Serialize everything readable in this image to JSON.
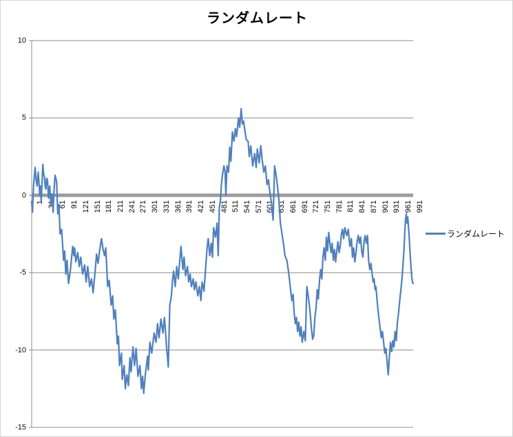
{
  "chart": {
    "title": "ランダムレート",
    "legend": {
      "label": "ランダムレート"
    },
    "colors": {
      "series": "#4F81BD",
      "gridline": "#8c8c8c",
      "zero_line": "#9c9c9c",
      "axis": "#8c8c8c",
      "chart_border": "#d4d4d4",
      "text": "#0d0d0d"
    }
  },
  "chart_data": {
    "type": "line",
    "title": "ランダムレート",
    "xlabel": "",
    "ylabel": "",
    "xlim": [
      1,
      995
    ],
    "ylim": [
      -15,
      10
    ],
    "grid": "horizontal",
    "legend_position": "right-middle",
    "y_ticks": [
      10,
      5,
      0,
      -5,
      -10,
      -15
    ],
    "y_tick_labels": [
      "10",
      "5",
      "0",
      "-5",
      "-10",
      "-15"
    ],
    "x_tick_labels": [
      "1",
      "31",
      "61",
      "91",
      "121",
      "151",
      "181",
      "211",
      "241",
      "271",
      "301",
      "331",
      "361",
      "391",
      "421",
      "451",
      "481",
      "511",
      "541",
      "571",
      "601",
      "631",
      "661",
      "691",
      "721",
      "751",
      "781",
      "811",
      "841",
      "871",
      "901",
      "931",
      "961",
      "991"
    ],
    "series": [
      {
        "name": "ランダムレート",
        "color": "#4F81BD",
        "points": [
          [
            1,
            -0.4
          ],
          [
            3,
            -1.1
          ],
          [
            6,
            0.7
          ],
          [
            10,
            1.8
          ],
          [
            13,
            0.9
          ],
          [
            15,
            0.6
          ],
          [
            18,
            1.5
          ],
          [
            20,
            0.8
          ],
          [
            22,
            0.0
          ],
          [
            24,
            0.6
          ],
          [
            26,
            -0.4
          ],
          [
            28,
            0.8
          ],
          [
            30,
            2.0
          ],
          [
            32,
            1.4
          ],
          [
            34,
            1.2
          ],
          [
            36,
            0.6
          ],
          [
            38,
            0.4
          ],
          [
            40,
            1.1
          ],
          [
            42,
            1.0
          ],
          [
            45,
            -0.2
          ],
          [
            48,
            0.6
          ],
          [
            51,
            -0.6
          ],
          [
            54,
            0.1
          ],
          [
            57,
            -1.1
          ],
          [
            59,
            0.2
          ],
          [
            62,
            1.3
          ],
          [
            66,
            0.9
          ],
          [
            69,
            -1.2
          ],
          [
            72,
            -0.6
          ],
          [
            75,
            -2.5
          ],
          [
            79,
            -2.2
          ],
          [
            84,
            -4.2
          ],
          [
            87,
            -3.6
          ],
          [
            90,
            -5.1
          ],
          [
            93,
            -4.2
          ],
          [
            97,
            -5.7
          ],
          [
            102,
            -4.8
          ],
          [
            105,
            -4.0
          ],
          [
            108,
            -3.3
          ],
          [
            111,
            -3.9
          ],
          [
            113,
            -3.4
          ],
          [
            116,
            -4.3
          ],
          [
            121,
            -3.7
          ],
          [
            125,
            -4.6
          ],
          [
            129,
            -4.0
          ],
          [
            134,
            -5.1
          ],
          [
            139,
            -4.5
          ],
          [
            143,
            -5.6
          ],
          [
            147,
            -4.6
          ],
          [
            152,
            -5.9
          ],
          [
            157,
            -5.4
          ],
          [
            161,
            -6.3
          ],
          [
            166,
            -5.0
          ],
          [
            170,
            -3.8
          ],
          [
            174,
            -4.4
          ],
          [
            178,
            -3.6
          ],
          [
            183,
            -2.8
          ],
          [
            187,
            -3.5
          ],
          [
            191,
            -3.9
          ],
          [
            194,
            -3.4
          ],
          [
            199,
            -5.9
          ],
          [
            203,
            -5.5
          ],
          [
            208,
            -7.1
          ],
          [
            212,
            -6.5
          ],
          [
            215,
            -8.0
          ],
          [
            219,
            -7.4
          ],
          [
            224,
            -9.6
          ],
          [
            227,
            -9.1
          ],
          [
            230,
            -11.0
          ],
          [
            235,
            -10.2
          ],
          [
            237,
            -11.9
          ],
          [
            242,
            -11.0
          ],
          [
            245,
            -12.5
          ],
          [
            249,
            -11.6
          ],
          [
            253,
            -12.3
          ],
          [
            257,
            -10.5
          ],
          [
            260,
            -11.4
          ],
          [
            265,
            -9.8
          ],
          [
            269,
            -11.0
          ],
          [
            273,
            -9.9
          ],
          [
            278,
            -11.7
          ],
          [
            283,
            -11.0
          ],
          [
            287,
            -12.5
          ],
          [
            290,
            -11.7
          ],
          [
            293,
            -12.8
          ],
          [
            297,
            -11.6
          ],
          [
            303,
            -10.4
          ],
          [
            305,
            -11.3
          ],
          [
            309,
            -9.5
          ],
          [
            314,
            -10.2
          ],
          [
            320,
            -8.9
          ],
          [
            325,
            -9.5
          ],
          [
            329,
            -8.3
          ],
          [
            333,
            -9.2
          ],
          [
            338,
            -8.0
          ],
          [
            343,
            -8.9
          ],
          [
            347,
            -7.9
          ],
          [
            350,
            -8.9
          ],
          [
            353,
            -10.0
          ],
          [
            355,
            -10.5
          ],
          [
            357,
            -11.1
          ],
          [
            361,
            -7.1
          ],
          [
            365,
            -6.5
          ],
          [
            368,
            -5.5
          ],
          [
            371,
            -4.9
          ],
          [
            375,
            -5.9
          ],
          [
            379,
            -4.6
          ],
          [
            383,
            -5.4
          ],
          [
            387,
            -4.2
          ],
          [
            390,
            -3.3
          ],
          [
            395,
            -4.8
          ],
          [
            398,
            -4.0
          ],
          [
            402,
            -5.2
          ],
          [
            407,
            -4.6
          ],
          [
            410,
            -5.6
          ],
          [
            414,
            -5.1
          ],
          [
            417,
            -5.9
          ],
          [
            422,
            -5.4
          ],
          [
            425,
            -6.1
          ],
          [
            429,
            -5.6
          ],
          [
            434,
            -6.5
          ],
          [
            438,
            -5.9
          ],
          [
            442,
            -6.8
          ],
          [
            445,
            -5.6
          ],
          [
            450,
            -6.2
          ],
          [
            454,
            -4.8
          ],
          [
            458,
            -3.4
          ],
          [
            461,
            -2.8
          ],
          [
            465,
            -3.9
          ],
          [
            469,
            -3.1
          ],
          [
            472,
            -4.0
          ],
          [
            475,
            -2.1
          ],
          [
            480,
            -2.7
          ],
          [
            484,
            -1.8
          ],
          [
            487,
            -3.9
          ],
          [
            490,
            -0.8
          ],
          [
            493,
            -0.3
          ],
          [
            495,
            0.6
          ],
          [
            498,
            1.3
          ],
          [
            502,
            1.9
          ],
          [
            505,
            1.5
          ],
          [
            507,
            0.0
          ],
          [
            510,
            1.9
          ],
          [
            514,
            1.5
          ],
          [
            517,
            3.1
          ],
          [
            520,
            2.2
          ],
          [
            524,
            4.1
          ],
          [
            528,
            3.5
          ],
          [
            532,
            4.3
          ],
          [
            535,
            3.8
          ],
          [
            540,
            5.0
          ],
          [
            543,
            4.4
          ],
          [
            547,
            5.6
          ],
          [
            550,
            4.6
          ],
          [
            553,
            4.8
          ],
          [
            556,
            4.3
          ],
          [
            560,
            3.6
          ],
          [
            565,
            3.5
          ],
          [
            568,
            2.5
          ],
          [
            572,
            3.2
          ],
          [
            577,
            1.9
          ],
          [
            582,
            2.7
          ],
          [
            586,
            1.8
          ],
          [
            589,
            3.0
          ],
          [
            594,
            2.1
          ],
          [
            598,
            3.2
          ],
          [
            602,
            2.2
          ],
          [
            606,
            1.5
          ],
          [
            610,
            1.9
          ],
          [
            614,
            0.7
          ],
          [
            618,
            1.0
          ],
          [
            622,
            0.1
          ],
          [
            626,
            -0.5
          ],
          [
            630,
            -1.6
          ],
          [
            634,
            1.9
          ],
          [
            638,
            1.3
          ],
          [
            641,
            0.7
          ],
          [
            645,
            -0.2
          ],
          [
            649,
            -1.8
          ],
          [
            654,
            -2.6
          ],
          [
            658,
            -3.3
          ],
          [
            661,
            -3.9
          ],
          [
            666,
            -4.2
          ],
          [
            670,
            -4.9
          ],
          [
            673,
            -5.5
          ],
          [
            676,
            -6.2
          ],
          [
            679,
            -6.8
          ],
          [
            682,
            -6.4
          ],
          [
            685,
            -7.6
          ],
          [
            688,
            -8.3
          ],
          [
            691,
            -7.9
          ],
          [
            694,
            -8.8
          ],
          [
            697,
            -8.2
          ],
          [
            700,
            -9.1
          ],
          [
            703,
            -8.5
          ],
          [
            706,
            -9.5
          ],
          [
            710,
            -8.8
          ],
          [
            714,
            -9.4
          ],
          [
            718,
            -5.9
          ],
          [
            721,
            -6.4
          ],
          [
            724,
            -7.0
          ],
          [
            727,
            -7.7
          ],
          [
            730,
            -8.6
          ],
          [
            733,
            -9.3
          ],
          [
            736,
            -9.1
          ],
          [
            739,
            -7.9
          ],
          [
            742,
            -7.3
          ],
          [
            745,
            -6.1
          ],
          [
            748,
            -6.7
          ],
          [
            751,
            -5.5
          ],
          [
            754,
            -4.8
          ],
          [
            757,
            -5.4
          ],
          [
            760,
            -4.0
          ],
          [
            763,
            -3.4
          ],
          [
            766,
            -4.2
          ],
          [
            769,
            -2.7
          ],
          [
            772,
            -3.6
          ],
          [
            775,
            -2.4
          ],
          [
            778,
            -3.1
          ],
          [
            781,
            -3.7
          ],
          [
            784,
            -3.1
          ],
          [
            787,
            -4.2
          ],
          [
            790,
            -3.5
          ],
          [
            793,
            -4.3
          ],
          [
            796,
            -3.6
          ],
          [
            799,
            -3.0
          ],
          [
            802,
            -3.7
          ],
          [
            805,
            -3.3
          ],
          [
            808,
            -2.5
          ],
          [
            811,
            -2.2
          ],
          [
            814,
            -2.8
          ],
          [
            817,
            -2.1
          ],
          [
            822,
            -2.6
          ],
          [
            826,
            -2.2
          ],
          [
            830,
            -3.3
          ],
          [
            834,
            -2.8
          ],
          [
            837,
            -4.0
          ],
          [
            840,
            -3.4
          ],
          [
            843,
            -4.3
          ],
          [
            846,
            -3.7
          ],
          [
            849,
            -3.0
          ],
          [
            852,
            -2.6
          ],
          [
            855,
            -3.1
          ],
          [
            858,
            -2.7
          ],
          [
            861,
            -3.6
          ],
          [
            864,
            -4.0
          ],
          [
            867,
            -3.0
          ],
          [
            870,
            -2.6
          ],
          [
            873,
            -3.1
          ],
          [
            876,
            -2.6
          ],
          [
            879,
            -4.2
          ],
          [
            882,
            -4.8
          ],
          [
            885,
            -4.4
          ],
          [
            888,
            -5.1
          ],
          [
            891,
            -5.6
          ],
          [
            893,
            -5.4
          ],
          [
            896,
            -6.1
          ],
          [
            898,
            -5.9
          ],
          [
            900,
            -6.5
          ],
          [
            903,
            -7.3
          ],
          [
            906,
            -8.0
          ],
          [
            909,
            -8.6
          ],
          [
            912,
            -9.2
          ],
          [
            915,
            -8.8
          ],
          [
            918,
            -9.5
          ],
          [
            921,
            -10.2
          ],
          [
            924,
            -9.9
          ],
          [
            927,
            -10.7
          ],
          [
            930,
            -11.6
          ],
          [
            933,
            -10.5
          ],
          [
            936,
            -9.5
          ],
          [
            939,
            -10.1
          ],
          [
            942,
            -9.4
          ],
          [
            945,
            -9.8
          ],
          [
            948,
            -8.8
          ],
          [
            951,
            -9.4
          ],
          [
            954,
            -8.2
          ],
          [
            957,
            -7.6
          ],
          [
            960,
            -6.8
          ],
          [
            963,
            -6.1
          ],
          [
            966,
            -5.4
          ],
          [
            969,
            -4.3
          ],
          [
            971,
            -3.6
          ],
          [
            973,
            -2.5
          ],
          [
            975,
            -1.6
          ],
          [
            977,
            -1.2
          ],
          [
            979,
            -1.8
          ],
          [
            981,
            -1.4
          ],
          [
            983,
            -2.1
          ],
          [
            985,
            -2.8
          ],
          [
            987,
            -3.7
          ],
          [
            989,
            -4.5
          ],
          [
            991,
            -5.2
          ],
          [
            993,
            -5.6
          ],
          [
            995,
            -5.7
          ]
        ]
      }
    ]
  }
}
